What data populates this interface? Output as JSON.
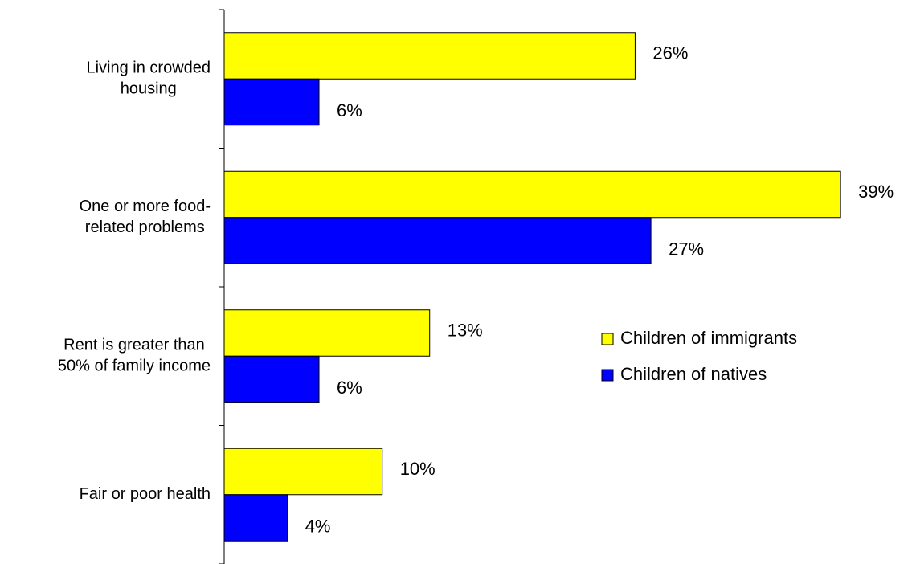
{
  "chart_data": {
    "type": "hbar",
    "categories": [
      [
        "Living in crowded",
        "housing"
      ],
      [
        "One or more food-",
        "related problems"
      ],
      [
        "Rent is greater than",
        "50% of family income"
      ],
      [
        "Fair or poor health"
      ]
    ],
    "series": [
      {
        "name": "Children of immigrants",
        "color": "#ffff00",
        "values": [
          26,
          39,
          13,
          10
        ],
        "value_labels": [
          "26%",
          "39%",
          "13%",
          "10%"
        ]
      },
      {
        "name": "Children of natives",
        "color": "#0000ff",
        "values": [
          6,
          27,
          6,
          4
        ],
        "value_labels": [
          "6%",
          "27%",
          "6%",
          "4%"
        ]
      }
    ],
    "xlim": [
      0,
      40
    ],
    "legend": "right"
  }
}
